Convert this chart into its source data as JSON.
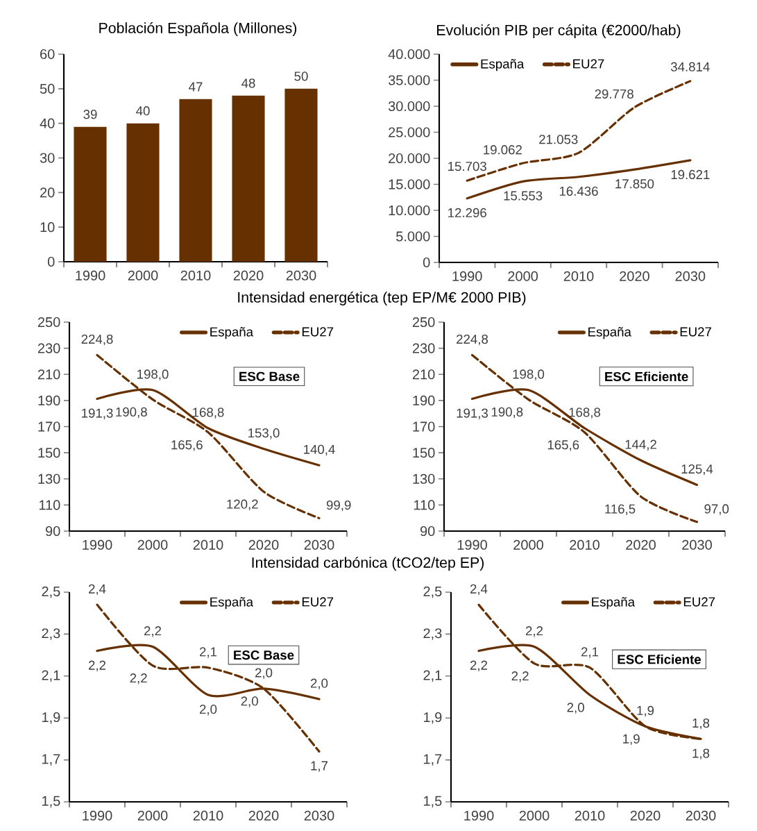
{
  "chart_data": [
    {
      "type": "bar",
      "title": "Población Española (Millones)",
      "categories": [
        "1990",
        "2000",
        "2010",
        "2020",
        "2030"
      ],
      "values": [
        39,
        40,
        47,
        48,
        50
      ],
      "color": "#663000",
      "data_labels": true,
      "ylim": [
        0,
        60
      ],
      "yticks": [
        0,
        10,
        20,
        30,
        40,
        50,
        60
      ]
    },
    {
      "type": "line",
      "title": "Evolución PIB per cápita (€2000/hab)",
      "categories": [
        "1990",
        "2000",
        "2010",
        "2020",
        "2030"
      ],
      "legend": "top left",
      "marker": "none",
      "series": [
        {
          "name": "España",
          "color": "#663000",
          "line_style": "solid",
          "values": [
            12296,
            15553,
            16436,
            17850,
            19621
          ],
          "value_labels": [
            "12.296",
            "15.553",
            "16.436",
            "17.850",
            "19.621"
          ]
        },
        {
          "name": "EU27",
          "color": "#663000",
          "line_style": "dashed",
          "values": [
            15703,
            19062,
            21053,
            29778,
            34814
          ],
          "value_labels": [
            "15.703",
            "19.062",
            "21.053",
            "29.778",
            "34.814"
          ]
        }
      ],
      "ylim": [
        0,
        40000
      ],
      "yticks": [
        0,
        {
          "value": 5000,
          "label": "5.000"
        },
        {
          "value": 10000,
          "label": "10.000"
        },
        {
          "value": 15000,
          "label": "15.000"
        },
        {
          "value": 20000,
          "label": "20.000"
        },
        {
          "value": 25000,
          "label": "25.000"
        },
        {
          "value": 30000,
          "label": "30.000"
        },
        {
          "value": 35000,
          "label": "35.000"
        },
        {
          "value": 40000,
          "label": "40.000"
        }
      ]
    },
    {
      "type": "line",
      "title": "Intensidad energética (tep EP/M€ 2000 PIB)",
      "annotations": [
        "ESC Base"
      ],
      "categories": [
        "1990",
        "2000",
        "2010",
        "2020",
        "2030"
      ],
      "legend": "top",
      "marker": "none",
      "series": [
        {
          "name": "España",
          "color": "#663000",
          "line_style": "solid",
          "values": [
            191.3,
            198.0,
            168.8,
            153.0,
            140.4
          ],
          "value_labels": [
            "191,3",
            "198,0",
            "168,8",
            "153,0",
            "140,4"
          ]
        },
        {
          "name": "EU27",
          "color": "#663000",
          "line_style": "dashed",
          "values": [
            224.8,
            190.8,
            165.6,
            120.2,
            99.9
          ],
          "value_labels": [
            "224,8",
            "190,8",
            "165,6",
            "120,2",
            "99,9"
          ]
        }
      ],
      "ylim": [
        90,
        250
      ],
      "yticks": [
        90,
        110,
        130,
        150,
        170,
        190,
        210,
        230,
        250
      ]
    },
    {
      "type": "line",
      "annotations": [
        "ESC Eficiente"
      ],
      "categories": [
        "1990",
        "2000",
        "2010",
        "2020",
        "2030"
      ],
      "legend": "top",
      "marker": "none",
      "series": [
        {
          "name": "España",
          "color": "#663000",
          "line_style": "solid",
          "values": [
            191.3,
            198.0,
            168.8,
            144.2,
            125.4
          ],
          "value_labels": [
            "191,3",
            "198,0",
            "168,8",
            "144,2",
            "125,4"
          ]
        },
        {
          "name": "EU27",
          "color": "#663000",
          "line_style": "dashed",
          "values": [
            224.8,
            190.8,
            165.6,
            116.5,
            97.0
          ],
          "value_labels": [
            "224,8",
            "190,8",
            "165,6",
            "116,5",
            "97,0"
          ]
        }
      ],
      "ylim": [
        90,
        250
      ],
      "yticks": [
        90,
        110,
        130,
        150,
        170,
        190,
        210,
        230,
        250
      ]
    },
    {
      "type": "line",
      "title": "Intensidad carbónica (tCO2/tep EP)",
      "annotations": [
        "ESC Base"
      ],
      "categories": [
        "1990",
        "2000",
        "2010",
        "2020",
        "2030"
      ],
      "legend": "top",
      "marker": "none",
      "series": [
        {
          "name": "España",
          "color": "#663000",
          "line_style": "solid",
          "values": [
            2.22,
            2.24,
            2.01,
            2.04,
            1.99
          ],
          "value_labels": [
            "2,2",
            "2,2",
            "2,0",
            "2,0",
            "2,0"
          ]
        },
        {
          "name": "EU27",
          "color": "#663000",
          "line_style": "dashed",
          "values": [
            2.44,
            2.15,
            2.14,
            2.04,
            1.74
          ],
          "value_labels": [
            "2,4",
            "2,2",
            "2,1",
            "2,0",
            "1,7"
          ]
        }
      ],
      "ylim": [
        1.5,
        2.5
      ],
      "yticks": [
        {
          "value": 1.5,
          "label": "1,5"
        },
        {
          "value": 1.7,
          "label": "1,7"
        },
        {
          "value": 1.9,
          "label": "1,9"
        },
        {
          "value": 2.1,
          "label": "2,1"
        },
        {
          "value": 2.3,
          "label": "2,3"
        },
        {
          "value": 2.5,
          "label": "2,5"
        }
      ]
    },
    {
      "type": "line",
      "annotations": [
        "ESC Eficiente"
      ],
      "categories": [
        "1990",
        "2000",
        "2010",
        "2020",
        "2030"
      ],
      "legend": "top",
      "marker": "none",
      "series": [
        {
          "name": "España",
          "color": "#663000",
          "line_style": "solid",
          "values": [
            2.22,
            2.24,
            2.01,
            1.86,
            1.8
          ],
          "value_labels": [
            "2,2",
            "2,2",
            "2,0",
            "1,9",
            "1,8"
          ]
        },
        {
          "name": "EU27",
          "color": "#663000",
          "line_style": "dashed",
          "values": [
            2.44,
            2.16,
            2.14,
            1.86,
            1.8
          ],
          "value_labels": [
            "2,4",
            "2,2",
            "2,1",
            "1,9",
            "1,8"
          ]
        }
      ],
      "ylim": [
        1.5,
        2.5
      ],
      "yticks": [
        {
          "value": 1.5,
          "label": "1,5"
        },
        {
          "value": 1.7,
          "label": "1,7"
        },
        {
          "value": 1.9,
          "label": "1,9"
        },
        {
          "value": 2.1,
          "label": "2,1"
        },
        {
          "value": 2.3,
          "label": "2,3"
        },
        {
          "value": 2.5,
          "label": "2,5"
        }
      ]
    }
  ]
}
